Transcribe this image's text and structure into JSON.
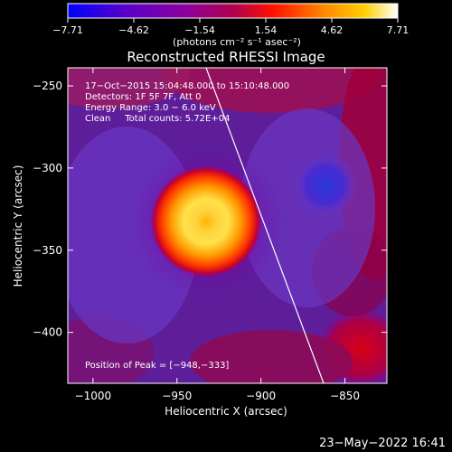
{
  "colorbar": {
    "ticks": [
      "−7.71",
      "−4.62",
      "−1.54",
      "1.54",
      "4.62",
      "7.71"
    ],
    "unit_label": "(photons cm⁻² s⁻¹ asec⁻²)",
    "colors": [
      "#0000ff",
      "#5a00c8",
      "#8a00a0",
      "#b00050",
      "#ff1000",
      "#ff8a00",
      "#ffd000",
      "#ffffff"
    ]
  },
  "plot": {
    "title": "Reconstructed RHESSI Image",
    "info_lines": [
      "17−Oct−2015 15:04:48.000 to 15:10:48.000",
      "Detectors: 1F 5F 7F, Att 0",
      "Energy Range: 3.0 − 6.0 keV",
      "Clean     Total counts: 5.72E+04"
    ],
    "peak_label": "Position of Peak = [−948,−333]",
    "xlabel": "Heliocentric X (arcsec)",
    "ylabel": "Heliocentric Y (arcsec)",
    "x_ticks": [
      "−1000",
      "−950",
      "−900",
      "−850"
    ],
    "y_ticks": [
      "−250",
      "−300",
      "−350",
      "−400"
    ],
    "x_tick_values": [
      -1000,
      -950,
      -900,
      -850
    ],
    "y_tick_values": [
      -250,
      -300,
      -350,
      -400
    ],
    "xlim": [
      -1015,
      -825
    ],
    "ylim": [
      -431,
      -239
    ]
  },
  "footer": {
    "timestamp": "23−May−2022 16:41"
  }
}
